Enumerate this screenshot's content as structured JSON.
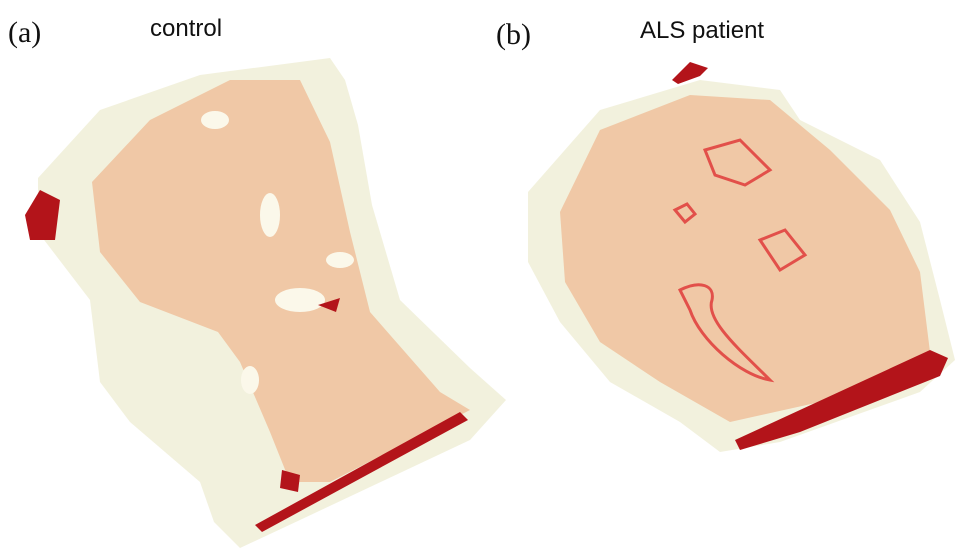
{
  "panels": [
    {
      "label": "(a)",
      "title": "control"
    },
    {
      "label": "(b)",
      "title": "ALS patient"
    }
  ]
}
